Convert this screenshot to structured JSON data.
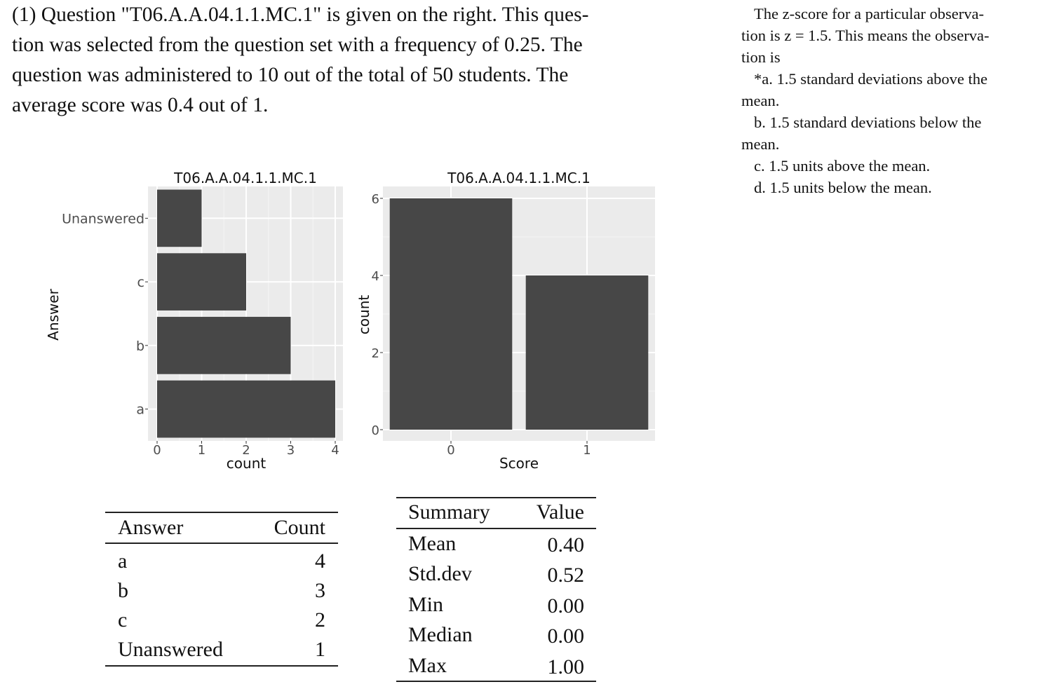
{
  "intro": {
    "lines": [
      "(1) Question \"T06.A.A.04.1.1.MC.1\" is given on the right. This ques-",
      "tion was selected from the question set with a frequency of 0.25. The",
      "question was administered to 10 out of the total of 50 students. The",
      "average score was 0.4 out of 1."
    ]
  },
  "question": {
    "stem_lines": [
      "The z-score for a particular observa-",
      "tion is z = 1.5. This means the observa-",
      "tion is"
    ],
    "options": [
      {
        "lines": [
          "*a. 1.5 standard deviations above the",
          "mean."
        ]
      },
      {
        "lines": [
          "b. 1.5 standard deviations below the",
          "mean."
        ]
      },
      {
        "lines": [
          "c. 1.5 units above the mean."
        ]
      },
      {
        "lines": [
          "d. 1.5 units below the mean."
        ]
      }
    ]
  },
  "chart_data": [
    {
      "type": "bar",
      "orientation": "horizontal",
      "title": "T06.A.A.04.1.1.MC.1",
      "xlabel": "count",
      "ylabel": "Answer",
      "categories": [
        "Unanswered",
        "c",
        "b",
        "a"
      ],
      "values": [
        1,
        2,
        3,
        4
      ],
      "xlim": [
        0,
        4
      ],
      "xticks": [
        "0",
        "1",
        "2",
        "3",
        "4"
      ],
      "grid": true,
      "bar_color": "#474747",
      "panel_color": "#ebebeb"
    },
    {
      "type": "bar",
      "orientation": "vertical",
      "title": "T06.A.A.04.1.1.MC.1",
      "xlabel": "Score",
      "ylabel": "count",
      "categories": [
        "0",
        "1"
      ],
      "values": [
        6,
        4
      ],
      "ylim": [
        0,
        6
      ],
      "yticks": [
        "0",
        "2",
        "4",
        "6"
      ],
      "grid": true,
      "bar_color": "#474747",
      "panel_color": "#ebebeb"
    }
  ],
  "answer_table": {
    "headers": [
      "Answer",
      "Count"
    ],
    "rows": [
      [
        "a",
        "4"
      ],
      [
        "b",
        "3"
      ],
      [
        "c",
        "2"
      ],
      [
        "Unanswered",
        "1"
      ]
    ]
  },
  "summary_table": {
    "headers": [
      "Summary",
      "Value"
    ],
    "rows": [
      [
        "Mean",
        "0.40"
      ],
      [
        "Std.dev",
        "0.52"
      ],
      [
        "Min",
        "0.00"
      ],
      [
        "Median",
        "0.00"
      ],
      [
        "Max",
        "1.00"
      ]
    ]
  }
}
